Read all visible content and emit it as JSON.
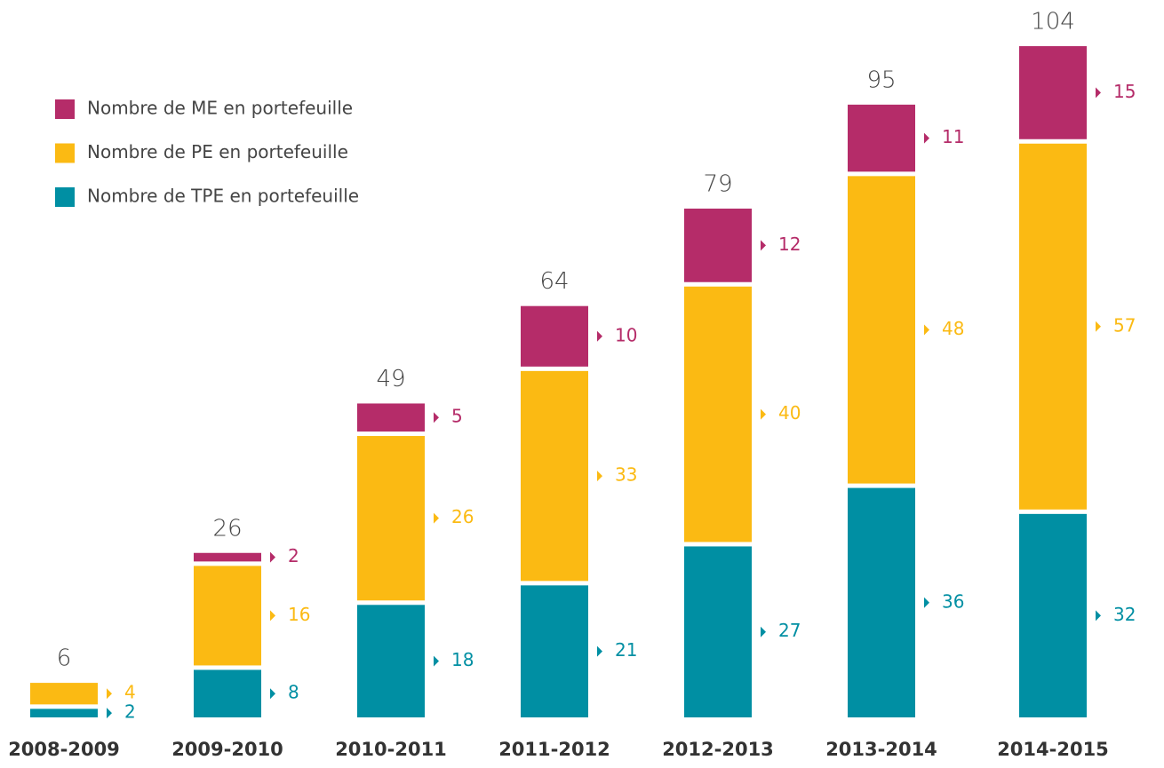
{
  "chart_data": {
    "type": "stacked-bar",
    "categories": [
      "2008-2009",
      "2009-2010",
      "2010-2011",
      "2011-2012",
      "2012-2013",
      "2013-2014",
      "2014-2015"
    ],
    "series": [
      {
        "name": "Nombre de TPE en portefeuille",
        "color": "#008fa3",
        "values": [
          2,
          8,
          18,
          21,
          27,
          36,
          32
        ]
      },
      {
        "name": "Nombre de PE en portefeuille",
        "color": "#fbba13",
        "values": [
          4,
          16,
          26,
          33,
          40,
          48,
          57
        ]
      },
      {
        "name": "Nombre de ME en portefeuille",
        "color": "#b52c69",
        "values": [
          null,
          2,
          5,
          10,
          12,
          11,
          15
        ]
      }
    ],
    "totals": [
      6,
      26,
      49,
      64,
      79,
      95,
      104
    ],
    "legend": "upper left"
  }
}
